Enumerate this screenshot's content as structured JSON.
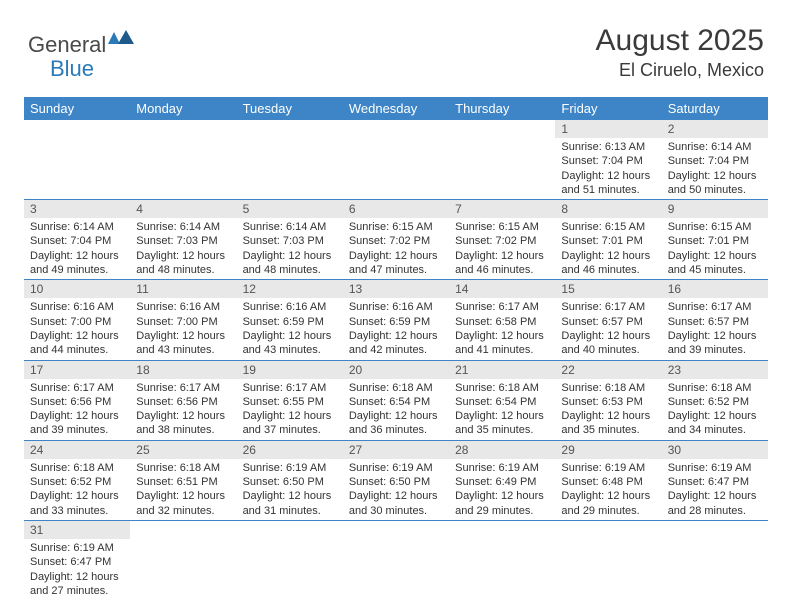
{
  "logo": {
    "general": "General",
    "blue": "Blue"
  },
  "title": "August 2025",
  "location": "El Ciruelo, Mexico",
  "colors": {
    "header_bg": "#3d85c6",
    "header_text": "#ffffff",
    "daynum_bg": "#e8e8e8",
    "border": "#3d85c6",
    "logo_blue": "#2b7ab8",
    "text": "#333333"
  },
  "weekdays": [
    "Sunday",
    "Monday",
    "Tuesday",
    "Wednesday",
    "Thursday",
    "Friday",
    "Saturday"
  ],
  "weeks": [
    [
      null,
      null,
      null,
      null,
      null,
      {
        "num": "1",
        "sunrise": "6:13 AM",
        "sunset": "7:04 PM",
        "daylight": "12 hours and 51 minutes."
      },
      {
        "num": "2",
        "sunrise": "6:14 AM",
        "sunset": "7:04 PM",
        "daylight": "12 hours and 50 minutes."
      }
    ],
    [
      {
        "num": "3",
        "sunrise": "6:14 AM",
        "sunset": "7:04 PM",
        "daylight": "12 hours and 49 minutes."
      },
      {
        "num": "4",
        "sunrise": "6:14 AM",
        "sunset": "7:03 PM",
        "daylight": "12 hours and 48 minutes."
      },
      {
        "num": "5",
        "sunrise": "6:14 AM",
        "sunset": "7:03 PM",
        "daylight": "12 hours and 48 minutes."
      },
      {
        "num": "6",
        "sunrise": "6:15 AM",
        "sunset": "7:02 PM",
        "daylight": "12 hours and 47 minutes."
      },
      {
        "num": "7",
        "sunrise": "6:15 AM",
        "sunset": "7:02 PM",
        "daylight": "12 hours and 46 minutes."
      },
      {
        "num": "8",
        "sunrise": "6:15 AM",
        "sunset": "7:01 PM",
        "daylight": "12 hours and 46 minutes."
      },
      {
        "num": "9",
        "sunrise": "6:15 AM",
        "sunset": "7:01 PM",
        "daylight": "12 hours and 45 minutes."
      }
    ],
    [
      {
        "num": "10",
        "sunrise": "6:16 AM",
        "sunset": "7:00 PM",
        "daylight": "12 hours and 44 minutes."
      },
      {
        "num": "11",
        "sunrise": "6:16 AM",
        "sunset": "7:00 PM",
        "daylight": "12 hours and 43 minutes."
      },
      {
        "num": "12",
        "sunrise": "6:16 AM",
        "sunset": "6:59 PM",
        "daylight": "12 hours and 43 minutes."
      },
      {
        "num": "13",
        "sunrise": "6:16 AM",
        "sunset": "6:59 PM",
        "daylight": "12 hours and 42 minutes."
      },
      {
        "num": "14",
        "sunrise": "6:17 AM",
        "sunset": "6:58 PM",
        "daylight": "12 hours and 41 minutes."
      },
      {
        "num": "15",
        "sunrise": "6:17 AM",
        "sunset": "6:57 PM",
        "daylight": "12 hours and 40 minutes."
      },
      {
        "num": "16",
        "sunrise": "6:17 AM",
        "sunset": "6:57 PM",
        "daylight": "12 hours and 39 minutes."
      }
    ],
    [
      {
        "num": "17",
        "sunrise": "6:17 AM",
        "sunset": "6:56 PM",
        "daylight": "12 hours and 39 minutes."
      },
      {
        "num": "18",
        "sunrise": "6:17 AM",
        "sunset": "6:56 PM",
        "daylight": "12 hours and 38 minutes."
      },
      {
        "num": "19",
        "sunrise": "6:17 AM",
        "sunset": "6:55 PM",
        "daylight": "12 hours and 37 minutes."
      },
      {
        "num": "20",
        "sunrise": "6:18 AM",
        "sunset": "6:54 PM",
        "daylight": "12 hours and 36 minutes."
      },
      {
        "num": "21",
        "sunrise": "6:18 AM",
        "sunset": "6:54 PM",
        "daylight": "12 hours and 35 minutes."
      },
      {
        "num": "22",
        "sunrise": "6:18 AM",
        "sunset": "6:53 PM",
        "daylight": "12 hours and 35 minutes."
      },
      {
        "num": "23",
        "sunrise": "6:18 AM",
        "sunset": "6:52 PM",
        "daylight": "12 hours and 34 minutes."
      }
    ],
    [
      {
        "num": "24",
        "sunrise": "6:18 AM",
        "sunset": "6:52 PM",
        "daylight": "12 hours and 33 minutes."
      },
      {
        "num": "25",
        "sunrise": "6:18 AM",
        "sunset": "6:51 PM",
        "daylight": "12 hours and 32 minutes."
      },
      {
        "num": "26",
        "sunrise": "6:19 AM",
        "sunset": "6:50 PM",
        "daylight": "12 hours and 31 minutes."
      },
      {
        "num": "27",
        "sunrise": "6:19 AM",
        "sunset": "6:50 PM",
        "daylight": "12 hours and 30 minutes."
      },
      {
        "num": "28",
        "sunrise": "6:19 AM",
        "sunset": "6:49 PM",
        "daylight": "12 hours and 29 minutes."
      },
      {
        "num": "29",
        "sunrise": "6:19 AM",
        "sunset": "6:48 PM",
        "daylight": "12 hours and 29 minutes."
      },
      {
        "num": "30",
        "sunrise": "6:19 AM",
        "sunset": "6:47 PM",
        "daylight": "12 hours and 28 minutes."
      }
    ],
    [
      {
        "num": "31",
        "sunrise": "6:19 AM",
        "sunset": "6:47 PM",
        "daylight": "12 hours and 27 minutes."
      },
      null,
      null,
      null,
      null,
      null,
      null
    ]
  ],
  "labels": {
    "sunrise": "Sunrise: ",
    "sunset": "Sunset: ",
    "daylight": "Daylight: "
  }
}
